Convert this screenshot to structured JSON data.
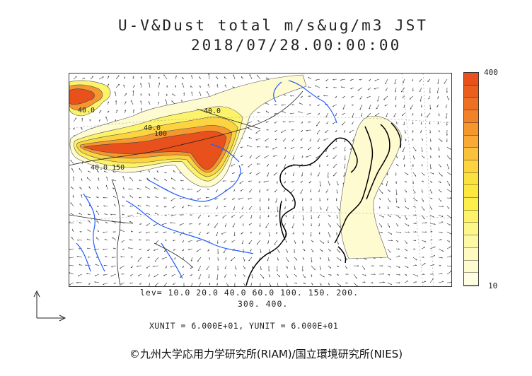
{
  "title": {
    "line1": "U-V&Dust total m/s&ug/m3 JST",
    "line2": "2018/07/28.00:00:00"
  },
  "map": {
    "region": "East Asia",
    "overlay": "surface wind vectors and dust total concentration",
    "contour_labels": [
      "40.0",
      "40.0",
      "40.0",
      "100",
      "40.0 150"
    ]
  },
  "colorbar": {
    "max_label": "400",
    "min_label": "10",
    "colors": [
      "#e8511c",
      "#ea5f1e",
      "#ee7024",
      "#f2822a",
      "#f5962f",
      "#f8a936",
      "#fac23c",
      "#fbd43f",
      "#fbe13f",
      "#fce83f",
      "#fcef4c",
      "#fdf36a",
      "#fdf689",
      "#fdf8a6",
      "#fefac0",
      "#fefbd0",
      "#fffde2"
    ]
  },
  "legend": {
    "levels_line1": "lev= 10.0 20.0 40.0 60.0 100. 150. 200.",
    "levels_line2": "300. 400.",
    "units": "XUNIT = 6.000E+01, YUNIT = 6.000E+01"
  },
  "credit": "©九州大学応用力学研究所(RIAM)/国立環境研究所(NIES)"
}
